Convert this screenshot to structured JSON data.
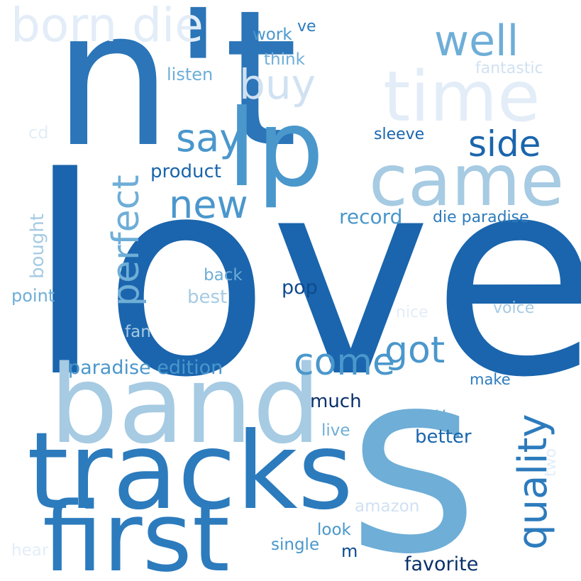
{
  "palette": {
    "darkest": "#08306b",
    "dark": "#0d4a8f",
    "mid_dark": "#1a65ad",
    "mid": "#2c7bbd",
    "mid_light": "#4a97cc",
    "light": "#6eaed7",
    "lighter": "#a6cbe3",
    "pale": "#d0e1f2",
    "palest": "#e3edf8",
    "background": "#ffffff"
  },
  "words": {
    "love": "love",
    "nt": "n't",
    "s": "s",
    "band": "band",
    "tracks": "tracks",
    "first": "first",
    "lp": "lp",
    "came": "came",
    "time": "time",
    "born_die": "born die",
    "well": "well",
    "buy": "buy",
    "say": "say",
    "side": "side",
    "new": "new",
    "perfect": "perfect",
    "product": "product",
    "record": "record",
    "die_paradise": "die paradise",
    "come": "come",
    "got": "got",
    "quality": "quality",
    "paradise_edition": "paradise edition",
    "work": "work",
    "ve": "ve",
    "think": "think",
    "listen": "listen",
    "fantastic": "fantastic",
    "sleeve": "sleeve",
    "cd": "cd",
    "bought": "bought",
    "point": "point",
    "back": "back",
    "best": "best",
    "pop": "pop",
    "nice": "nice",
    "voice": "voice",
    "fan": "fan",
    "make": "make",
    "much": "much",
    "way": "way",
    "better": "better",
    "live": "live",
    "two": "two",
    "amazon": "amazon",
    "look": "look",
    "single": "single",
    "m": "m",
    "favorite": "favorite",
    "hear": "hear"
  }
}
